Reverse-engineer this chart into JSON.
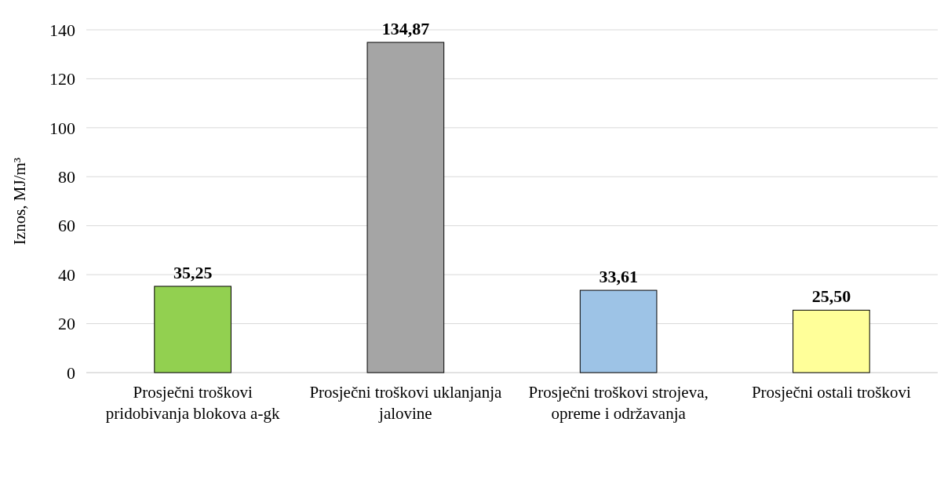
{
  "chart_data": {
    "type": "bar",
    "ylabel": "Iznos, MJ/m³",
    "categories": [
      "Prosječni troškovi pridobivanja blokova a-gk",
      "Prosječni troškovi uklanjanja jalovine",
      "Prosječni troškovi strojeva, opreme i održavanja",
      "Prosječni ostali troškovi"
    ],
    "values": [
      35.25,
      134.87,
      33.61,
      25.5
    ],
    "colors": [
      "#92d050",
      "#a5a5a5",
      "#9dc3e6",
      "#ffff99"
    ],
    "value_labels": [
      "35,25",
      "134,87",
      "33,61",
      "25,50"
    ],
    "ylim": [
      0,
      140
    ],
    "yticks": [
      0,
      20,
      40,
      60,
      80,
      100,
      120,
      140
    ],
    "grid": "y"
  }
}
